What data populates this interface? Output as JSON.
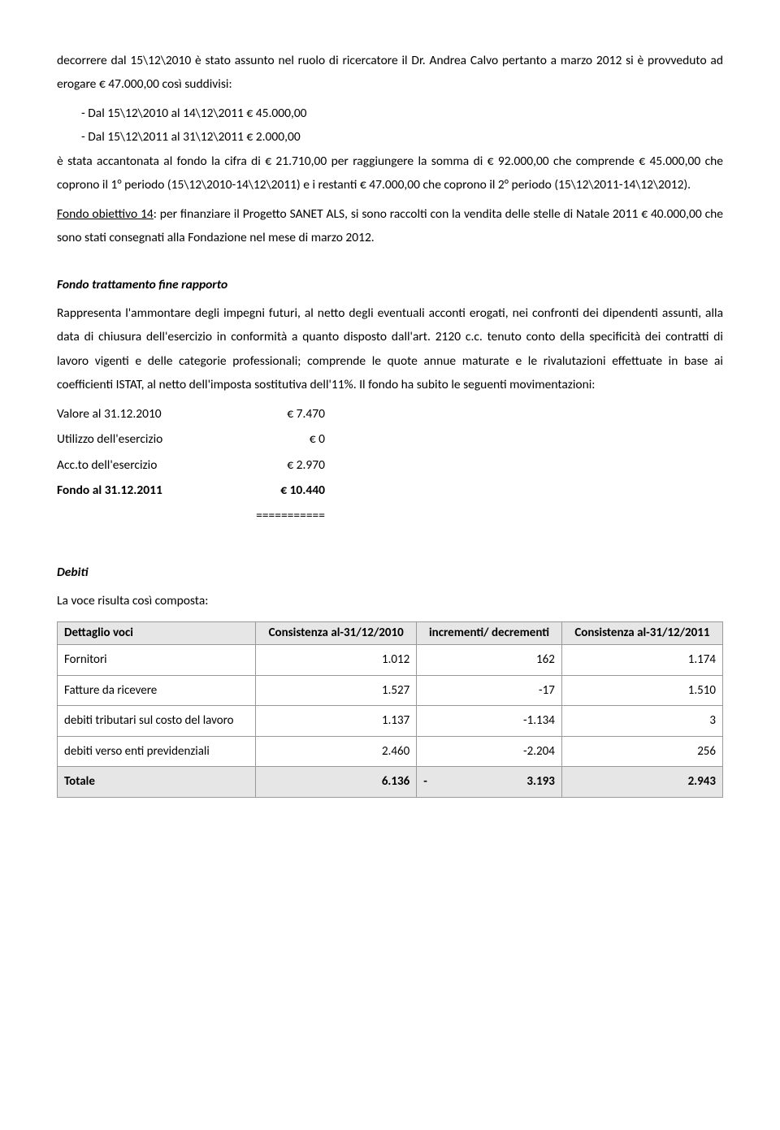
{
  "p1": "decorrere dal 15\\12\\2010 è stato assunto nel ruolo di ricercatore il Dr. Andrea Calvo pertanto a marzo 2012 si è provveduto ad erogare € 47.000,00 così suddivisi:",
  "bullets": [
    "Dal 15\\12\\2010 al 14\\12\\2011 € 45.000,00",
    "Dal 15\\12\\2011 al 31\\12\\2011 € 2.000,00"
  ],
  "p2": "è stata accantonata al fondo la cifra di € 21.710,00 per raggiungere la somma di € 92.000,00 che comprende € 45.000,00 che coprono il 1° periodo (15\\12\\2010-14\\12\\2011) e i restanti € 47.000,00 che coprono il 2° periodo (15\\12\\2011-14\\12\\2012).",
  "fondo14_label": "Fondo obiettivo 14",
  "fondo14_rest": ": per finanziare il Progetto SANET ALS, si sono raccolti con la vendita delle stelle di Natale 2011 € 40.000,00 che sono stati consegnati alla Fondazione nel mese di marzo 2012.",
  "tfr": {
    "title": "Fondo trattamento fine rapporto",
    "text": "Rappresenta l'ammontare degli impegni futuri, al netto degli eventuali acconti erogati, nei confronti dei dipendenti assunti, alla data di chiusura dell'esercizio in conformità a quanto disposto dall'art. 2120 c.c. tenuto conto della specificità dei contratti di lavoro vigenti e delle categorie professionali; comprende le quote annue maturate e le rivalutazioni effettuate in base ai coefficienti ISTAT, al netto dell'imposta sostitutiva dell'11%. Il fondo ha subito le seguenti movimentazioni:",
    "rows": [
      {
        "label": "Valore al 31.12.2010",
        "value": "€        7.470",
        "bold": false
      },
      {
        "label": "Utilizzo dell'esercizio",
        "value": "€               0",
        "bold": false
      },
      {
        "label": "Acc.to dell'esercizio",
        "value": "€        2.970",
        "bold": false
      },
      {
        "label": "Fondo al 31.12.2011",
        "value": "€      10.440",
        "bold": true
      }
    ],
    "separator": "==========="
  },
  "debiti": {
    "title": "Debiti",
    "intro": "La voce risulta così composta:",
    "headers": [
      "Dettaglio voci",
      "Consistenza al-31/12/2010",
      "incrementi/ decrementi",
      "Consistenza al-31/12/2011"
    ],
    "rows": [
      {
        "label": "Fornitori",
        "c1": "1.012",
        "c2": "162",
        "c3": "1.174"
      },
      {
        "label": "Fatture da ricevere",
        "c1": "1.527",
        "c2": "-17",
        "c3": "1.510"
      },
      {
        "label": "debiti tributari sul costo del lavoro",
        "c1": "1.137",
        "c2": "-1.134",
        "c3": "3"
      },
      {
        "label": "debiti verso enti previdenziali",
        "c1": "2.460",
        "c2": "-2.204",
        "c3": "256"
      }
    ],
    "total": {
      "label": "Totale",
      "c1": "6.136",
      "c2_prefix": "-",
      "c2": "3.193",
      "c3": "2.943"
    }
  }
}
